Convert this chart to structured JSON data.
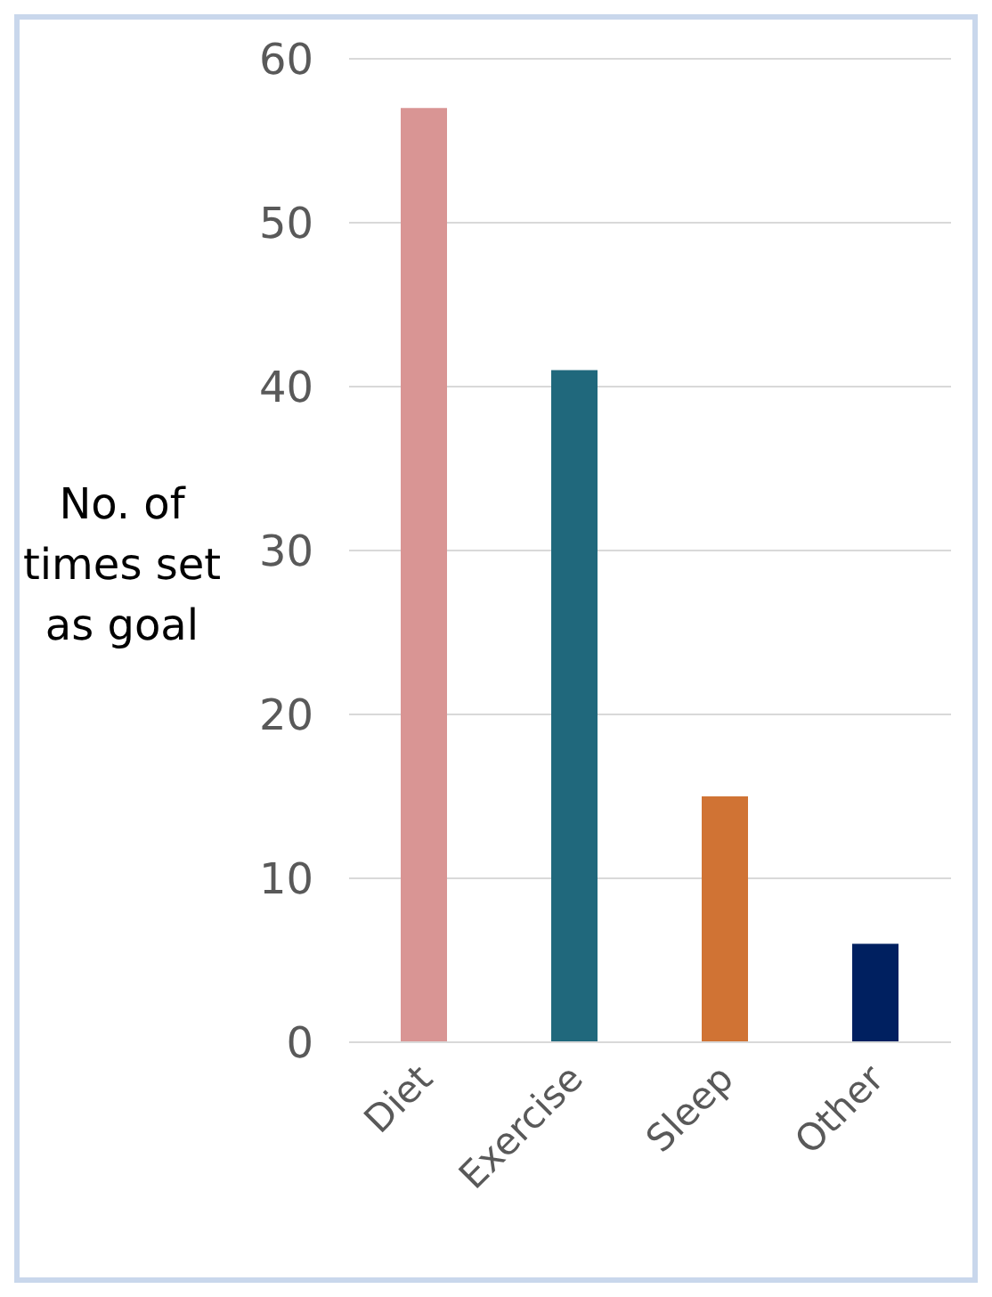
{
  "chart_data": {
    "type": "bar",
    "ylabel": "No. of times set as goal",
    "categories": [
      "Diet",
      "Exercise",
      "Sleep",
      "Other"
    ],
    "values": [
      57,
      41,
      15,
      6
    ],
    "colors": [
      "#d99594",
      "#20687c",
      "#d07334",
      "#002060"
    ],
    "ylim": [
      0,
      60
    ],
    "yticks": [
      0,
      10,
      20,
      30,
      40,
      50,
      60
    ],
    "grid": "y",
    "legend": false
  }
}
